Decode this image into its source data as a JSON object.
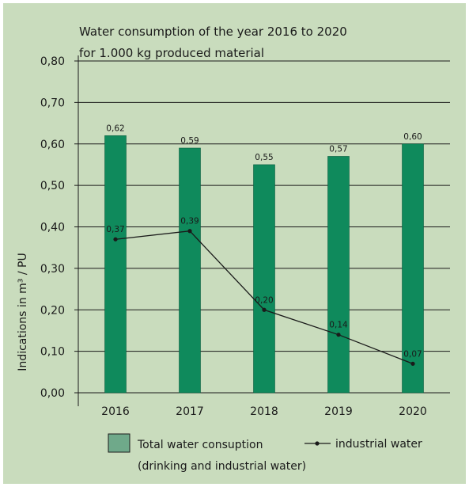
{
  "chart_data": {
    "type": "bar",
    "title_line1": "Water consumption of the year 2016 to 2020",
    "title_line2": "for 1.000 kg produced material",
    "ylabel": "Indications in m³ / PU",
    "categories": [
      "2016",
      "2017",
      "2018",
      "2019",
      "2020"
    ],
    "ylim": [
      0,
      0.8
    ],
    "yticks": [
      0.0,
      0.1,
      0.2,
      0.3,
      0.4,
      0.5,
      0.6,
      0.7,
      0.8
    ],
    "ytick_labels": [
      "0,00",
      "0,10",
      "0,20",
      "0,30",
      "0,40",
      "0,50",
      "0,60",
      "0,70",
      "0,80"
    ],
    "grid": true,
    "series": [
      {
        "name": "Total water consuption",
        "name_line2": "(drinking and industrial water)",
        "type": "bar",
        "values": [
          0.62,
          0.59,
          0.55,
          0.57,
          0.6
        ],
        "labels": [
          "0,62",
          "0,59",
          "0,55",
          "0,57",
          "0,60"
        ],
        "color": "#0f8a5c"
      },
      {
        "name": "industrial water",
        "type": "line",
        "values": [
          0.37,
          0.39,
          0.2,
          0.14,
          0.07
        ],
        "labels": [
          "0,37",
          "0,39",
          "0,20",
          "0,14",
          "0,07"
        ],
        "color": "#1a1a1a"
      }
    ],
    "legend_position": "bottom"
  },
  "colors": {
    "background": "#c9dcbd",
    "bar": "#0f8a5c",
    "line": "#1a1a1a",
    "grid": "#1a1a1a"
  }
}
